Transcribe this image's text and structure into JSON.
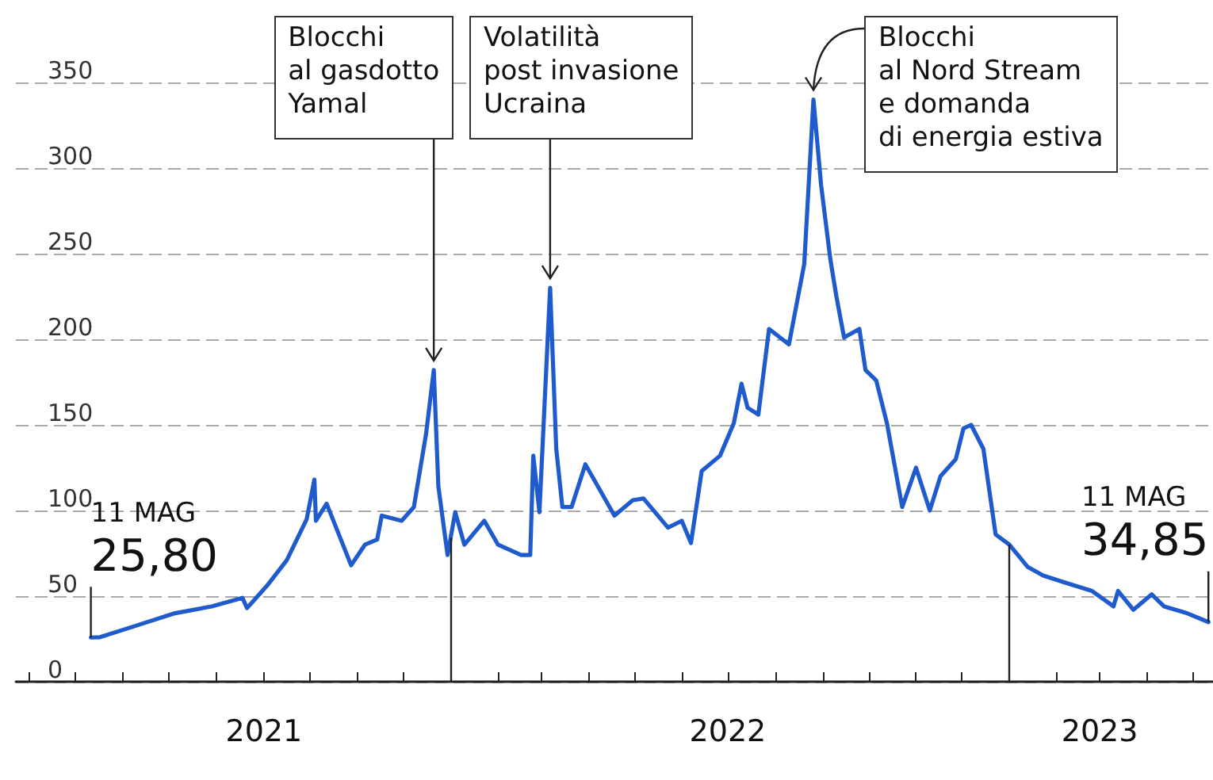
{
  "chart_data": {
    "type": "line",
    "x": [
      "2021-05-11",
      "2021-05-17",
      "2021-06-07",
      "2021-07-05",
      "2021-07-29",
      "2021-08-18",
      "2021-08-21",
      "2021-09-03",
      "2021-09-16",
      "2021-09-29",
      "2021-10-04",
      "2021-10-05",
      "2021-10-12",
      "2021-10-28",
      "2021-11-06",
      "2021-11-14",
      "2021-11-17",
      "2021-11-30",
      "2021-12-08",
      "2021-12-16",
      "2021-12-21",
      "2021-12-24",
      "2021-12-30",
      "2022-01-04",
      "2022-01-10",
      "2022-01-23",
      "2022-02-01",
      "2022-02-16",
      "2022-02-22",
      "2022-02-24",
      "2022-02-28",
      "2022-03-07",
      "2022-03-11",
      "2022-03-15",
      "2022-03-21",
      "2022-03-30",
      "2022-04-18",
      "2022-04-30",
      "2022-05-07",
      "2022-05-23",
      "2022-06-01",
      "2022-06-07",
      "2022-06-14",
      "2022-06-26",
      "2022-07-05",
      "2022-07-10",
      "2022-07-14",
      "2022-07-21",
      "2022-07-28",
      "2022-08-10",
      "2022-08-20",
      "2022-08-26",
      "2022-08-31",
      "2022-09-06",
      "2022-09-10",
      "2022-09-15",
      "2022-09-25",
      "2022-09-29",
      "2022-10-06",
      "2022-10-13",
      "2022-10-23",
      "2022-11-01",
      "2022-11-10",
      "2022-11-17",
      "2022-11-27",
      "2022-12-02",
      "2022-12-07",
      "2022-12-15",
      "2022-12-23",
      "2023-01-01",
      "2023-01-13",
      "2023-01-23",
      "2023-02-06",
      "2023-02-24",
      "2023-03-10",
      "2023-03-13",
      "2023-03-23",
      "2023-04-04",
      "2023-04-12",
      "2023-04-27",
      "2023-05-11"
    ],
    "series": [
      {
        "color": "#1f5bcc",
        "values": [
          25.8,
          26,
          32,
          40,
          44,
          49,
          43,
          56,
          71,
          95,
          118,
          94,
          104,
          68,
          80,
          83,
          97,
          94,
          102,
          145,
          182,
          114,
          74,
          99,
          80,
          94,
          80,
          74,
          74,
          132,
          99,
          230,
          136,
          102,
          102,
          127,
          97,
          106,
          107,
          90,
          94,
          81,
          123,
          132,
          151,
          174,
          160,
          156,
          206,
          197,
          244,
          340,
          290,
          247,
          225,
          201,
          206,
          182,
          176,
          151,
          102,
          125,
          100,
          120,
          130,
          148,
          150,
          136,
          86,
          80,
          67,
          62,
          58,
          53,
          44,
          53,
          42,
          51,
          44,
          40,
          34.85
        ]
      }
    ],
    "ylim": [
      0,
      350
    ],
    "yticks": [
      0,
      50,
      100,
      150,
      200,
      250,
      300,
      350
    ],
    "xlim": [
      "2021-03-23",
      "2023-05-14"
    ],
    "xticks": [
      {
        "value": "2021-04-01",
        "label": null
      },
      {
        "value": "2021-05-01",
        "label": null
      },
      {
        "value": "2021-06-01",
        "label": null
      },
      {
        "value": "2021-07-01",
        "label": null
      },
      {
        "value": "2021-08-01",
        "label": null
      },
      {
        "value": "2021-09-01",
        "label": "2021"
      },
      {
        "value": "2021-10-01",
        "label": null
      },
      {
        "value": "2021-11-01",
        "label": null
      },
      {
        "value": "2021-12-01",
        "label": null
      },
      {
        "value": "2022-01-01",
        "label": null
      },
      {
        "value": "2022-02-01",
        "label": null
      },
      {
        "value": "2022-03-01",
        "label": null
      },
      {
        "value": "2022-04-01",
        "label": null
      },
      {
        "value": "2022-05-01",
        "label": null
      },
      {
        "value": "2022-06-01",
        "label": null
      },
      {
        "value": "2022-07-01",
        "label": "2022"
      },
      {
        "value": "2022-08-01",
        "label": null
      },
      {
        "value": "2022-09-01",
        "label": null
      },
      {
        "value": "2022-10-01",
        "label": null
      },
      {
        "value": "2022-11-01",
        "label": null
      },
      {
        "value": "2022-12-01",
        "label": null
      },
      {
        "value": "2023-01-01",
        "label": null
      },
      {
        "value": "2023-02-01",
        "label": null
      },
      {
        "value": "2023-03-01",
        "label": "2023"
      },
      {
        "value": "2023-04-01",
        "label": null
      },
      {
        "value": "2023-05-01",
        "label": null
      }
    ],
    "ref_lines": [
      {
        "axis": "x",
        "value": "2022-01-01",
        "label": null,
        "color": "#222222"
      },
      {
        "axis": "x",
        "value": "2023-01-01",
        "label": null,
        "color": "#222222"
      }
    ],
    "annotations": [
      {
        "text": "Blocchi\nal gasdotto\nYamal",
        "x": "2021-12-21",
        "y": 182
      },
      {
        "text": "Volatilità\npost invasione\nUcraina",
        "x": "2022-03-07",
        "y": 230
      },
      {
        "text": "Blocchi\nal Nord Stream\ne domanda\ndi energia estiva",
        "x": "2022-08-26",
        "y": 340
      },
      {
        "text": "11 MAG\n25,80",
        "x": "2021-05-11",
        "y": 25.8
      },
      {
        "text": "11 MAG\n34,85",
        "x": "2023-05-11",
        "y": 34.85
      }
    ],
    "grid": "y",
    "marker": "none",
    "line_style": "solid"
  }
}
